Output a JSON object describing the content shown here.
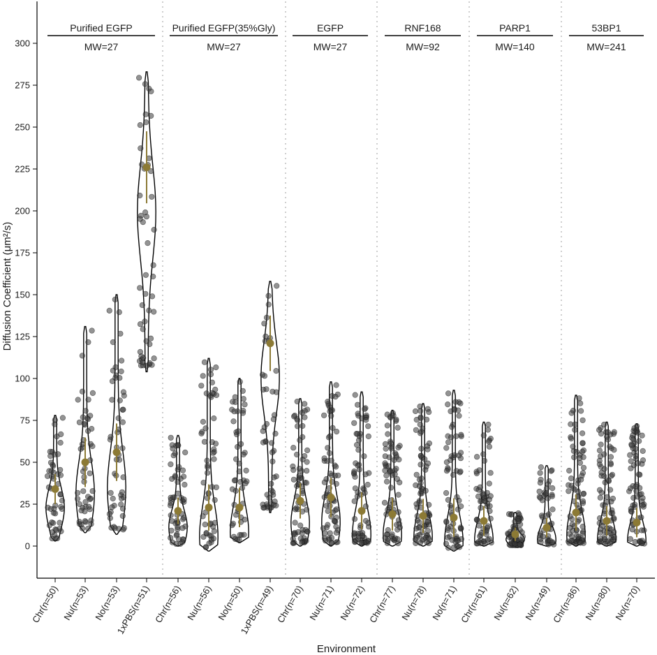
{
  "chart_data": {
    "type": "violin-strip",
    "xlabel": "Environment",
    "ylabel": "Diffusion Coefficient (μm²/s)",
    "ylim": [
      -20,
      325
    ],
    "yticks": [
      0,
      25,
      50,
      75,
      100,
      125,
      150,
      175,
      200,
      225,
      250,
      275,
      300
    ],
    "colors": {
      "point": "#3a3a3a",
      "mean": "#8c7a35",
      "violin": "#000000",
      "separator": "#bdbdbd"
    },
    "groups": [
      {
        "title": "Purified EGFP",
        "mw": "MW=27",
        "categories": [
          {
            "label": "Chr(n=50)",
            "n": 50,
            "mean": 34,
            "min": 3,
            "max": 78
          },
          {
            "label": "Nu(n=53)",
            "n": 53,
            "mean": 50,
            "min": 8,
            "max": 131
          },
          {
            "label": "No(n=53)",
            "n": 53,
            "mean": 56,
            "min": 7,
            "max": 150
          },
          {
            "label": "1xPBS(n=51)",
            "n": 51,
            "mean": 226,
            "min": 104,
            "max": 283
          }
        ]
      },
      {
        "title": "Purified EGFP(35%Gly)",
        "mw": "MW=27",
        "categories": [
          {
            "label": "Chr(n=56)",
            "n": 56,
            "mean": 21,
            "min": 0,
            "max": 66
          },
          {
            "label": "Nu(n=56)",
            "n": 56,
            "mean": 23,
            "min": -3,
            "max": 112
          },
          {
            "label": "No(n=50)",
            "n": 50,
            "mean": 23,
            "min": 2,
            "max": 100
          },
          {
            "label": "1xPBS(n=49)",
            "n": 49,
            "mean": 121,
            "min": 20,
            "max": 158
          }
        ]
      },
      {
        "title": "EGFP",
        "mw": "MW=27",
        "categories": [
          {
            "label": "Chr(n=70)",
            "n": 70,
            "mean": 27,
            "min": 0,
            "max": 88
          },
          {
            "label": "Nu(n=71)",
            "n": 71,
            "mean": 29,
            "min": 0,
            "max": 98
          },
          {
            "label": "No(n=72)",
            "n": 72,
            "mean": 21,
            "min": 0,
            "max": 92
          }
        ]
      },
      {
        "title": "RNF168",
        "mw": "MW=92",
        "categories": [
          {
            "label": "Chr(n=77)",
            "n": 77,
            "mean": 19,
            "min": 0,
            "max": 81
          },
          {
            "label": "Nu(n=78)",
            "n": 78,
            "mean": 18,
            "min": 0,
            "max": 85
          },
          {
            "label": "No(n=71)",
            "n": 71,
            "mean": 17,
            "min": -3,
            "max": 93
          }
        ]
      },
      {
        "title": "PARP1",
        "mw": "MW=140",
        "categories": [
          {
            "label": "Chr(n=61)",
            "n": 61,
            "mean": 15,
            "min": 0,
            "max": 74
          },
          {
            "label": "Nu(n=62)",
            "n": 62,
            "mean": 7,
            "min": 0,
            "max": 20
          },
          {
            "label": "No(n=49)",
            "n": 49,
            "mean": 11,
            "min": 0,
            "max": 48
          }
        ]
      },
      {
        "title": "53BP1",
        "mw": "MW=241",
        "categories": [
          {
            "label": "Chr(n=86)",
            "n": 86,
            "mean": 20,
            "min": 0,
            "max": 90
          },
          {
            "label": "Nu(n=80)",
            "n": 80,
            "mean": 15,
            "min": 0,
            "max": 74
          },
          {
            "label": "No(n=70)",
            "n": 70,
            "mean": 14,
            "min": 0,
            "max": 73
          }
        ]
      }
    ]
  }
}
